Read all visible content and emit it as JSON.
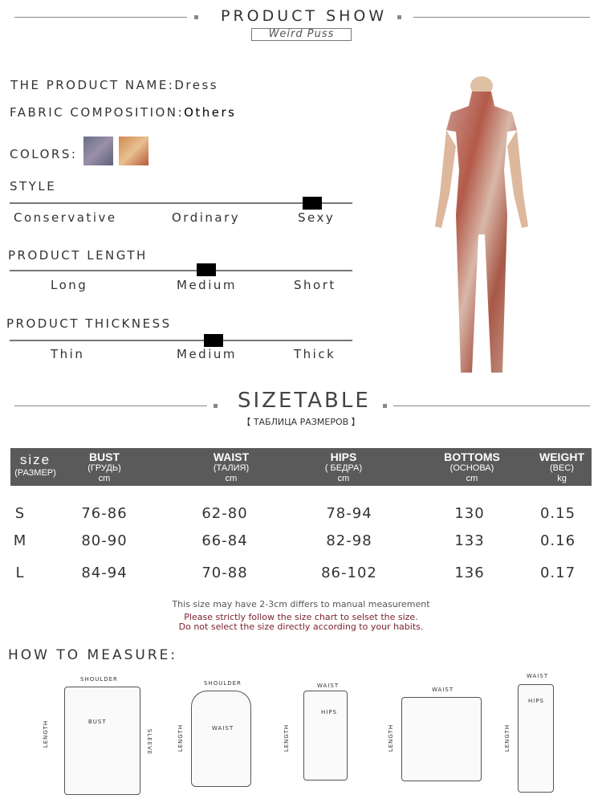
{
  "header": {
    "title": "PRODUCT SHOW",
    "brand": "Weird Puss"
  },
  "product": {
    "name_label": "THE PRODUCT NAME:",
    "name": "Dress",
    "fabric_label": "FABRIC COMPOSITION:",
    "fabric": "Others",
    "colors_label": "COLORS:"
  },
  "style": {
    "title": "STYLE",
    "options": [
      "Conservative",
      "Ordinary",
      "Sexy"
    ],
    "selected": "Sexy"
  },
  "length": {
    "title": "PRODUCT LENGTH",
    "options": [
      "Long",
      "Medium",
      "Short"
    ],
    "selected": "Medium"
  },
  "thickness": {
    "title": "PRODUCT THICKNESS",
    "options": [
      "Thin",
      "Medium",
      "Thick"
    ],
    "selected": "Medium"
  },
  "sizetable": {
    "title": "SIZETABLE",
    "subtitle": "【 ТАБЛИЦА РАЗМЕРОВ 】",
    "headers": [
      {
        "t": "size",
        "s": "(РАЗМЕР)",
        "u": ""
      },
      {
        "t": "BUST",
        "s": "(ГРУДЬ)",
        "u": "cm"
      },
      {
        "t": "WAIST",
        "s": "(ТАЛИЯ)",
        "u": "cm"
      },
      {
        "t": "HIPS",
        "s": "( БЕДРА)",
        "u": "cm"
      },
      {
        "t": "BOTTOMS",
        "s": "(ОСНОВА)",
        "u": "cm"
      },
      {
        "t": "WEIGHT",
        "s": "(ВЕС)",
        "u": "kg"
      }
    ],
    "rows": [
      [
        "S",
        "76-86",
        "62-80",
        "78-94",
        "130",
        "0.15"
      ],
      [
        "M",
        "80-90",
        "66-84",
        "82-98",
        "133",
        "0.16"
      ],
      [
        "L",
        "84-94",
        "70-88",
        "86-102",
        "136",
        "0.17"
      ]
    ],
    "note": "This size may have 2-3cm differs to manual measurement",
    "warning1": "Please strictly follow the size chart to selset the size.",
    "warning2": "Do not select the size directly according to your habits."
  },
  "measure": {
    "title": "HOW TO MEASURE:",
    "labels": {
      "shoulder": "SHOULDER",
      "bust": "BUST",
      "length": "LENGTH",
      "sleeve": "SLEEVE",
      "waist": "WAIST",
      "hips": "HIPS"
    }
  },
  "colors": {
    "header_bg": "#5a5a5a",
    "warning": "#7a1f2b"
  }
}
